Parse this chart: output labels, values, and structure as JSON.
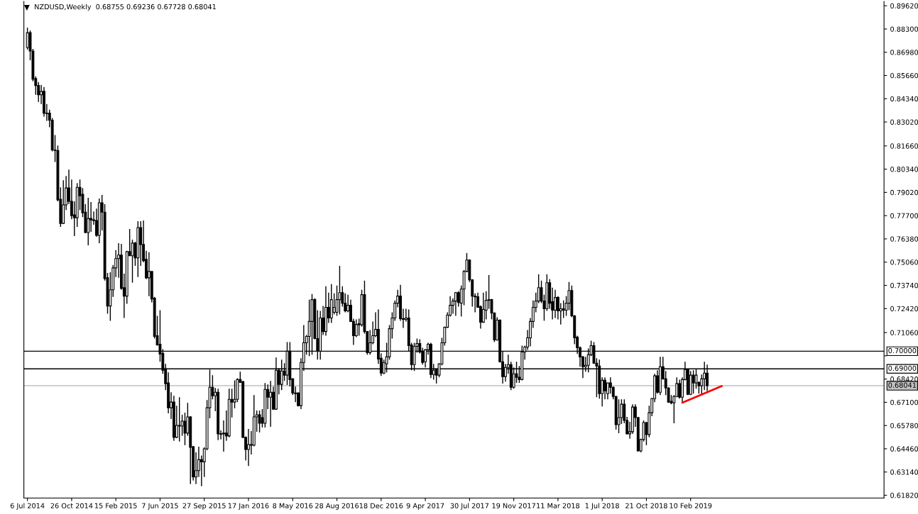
{
  "chart_data": {
    "type": "candlestick",
    "title": "NZDUSD,Weekly  0.68755 0.69236 0.67728 0.68041",
    "x": [
      "2014-07-06",
      "2014-07-13",
      "2014-07-20",
      "2014-07-27",
      "2014-08-03",
      "2014-08-10",
      "2014-08-17",
      "2014-08-24",
      "2014-08-31",
      "2014-09-07",
      "2014-09-14",
      "2014-09-21",
      "2014-09-28",
      "2014-10-05",
      "2014-10-12",
      "2014-10-19",
      "2014-10-26",
      "2014-11-02",
      "2014-11-09",
      "2014-11-16",
      "2014-11-23",
      "2014-11-30",
      "2014-12-07",
      "2014-12-14",
      "2014-12-21",
      "2014-12-28",
      "2015-01-04",
      "2015-01-11",
      "2015-01-18",
      "2015-01-25",
      "2015-02-01",
      "2015-02-08",
      "2015-02-15",
      "2015-02-22",
      "2015-03-01",
      "2015-03-08",
      "2015-03-15",
      "2015-03-22",
      "2015-03-29",
      "2015-04-05",
      "2015-04-12",
      "2015-04-19",
      "2015-04-26",
      "2015-05-03",
      "2015-05-10",
      "2015-05-17",
      "2015-05-24",
      "2015-05-31",
      "2015-06-07",
      "2015-06-14",
      "2015-06-21",
      "2015-06-28",
      "2015-07-05",
      "2015-07-12",
      "2015-07-19",
      "2015-07-26",
      "2015-08-02",
      "2015-08-09",
      "2015-08-16",
      "2015-08-23",
      "2015-08-30",
      "2015-09-06",
      "2015-09-13",
      "2015-09-20",
      "2015-09-27",
      "2015-10-04",
      "2015-10-11",
      "2015-10-18",
      "2015-10-25",
      "2015-11-01",
      "2015-11-08",
      "2015-11-15",
      "2015-11-22",
      "2015-11-29",
      "2015-12-06",
      "2015-12-13",
      "2015-12-20",
      "2015-12-27",
      "2016-01-03",
      "2016-01-10",
      "2016-01-17",
      "2016-01-24",
      "2016-01-31",
      "2016-02-07",
      "2016-02-14",
      "2016-02-21",
      "2016-02-28",
      "2016-03-06",
      "2016-03-13",
      "2016-03-20",
      "2016-03-27",
      "2016-04-03",
      "2016-04-10",
      "2016-04-17",
      "2016-04-24",
      "2016-05-01",
      "2016-05-08",
      "2016-05-15",
      "2016-05-22",
      "2016-05-29",
      "2016-06-05",
      "2016-06-12",
      "2016-06-19",
      "2016-06-26",
      "2016-07-03",
      "2016-07-10",
      "2016-07-17",
      "2016-07-24",
      "2016-07-31",
      "2016-08-07",
      "2016-08-14",
      "2016-08-21",
      "2016-08-28",
      "2016-09-04",
      "2016-09-11",
      "2016-09-18",
      "2016-09-25",
      "2016-10-02",
      "2016-10-09",
      "2016-10-16",
      "2016-10-23",
      "2016-10-30",
      "2016-11-06",
      "2016-11-13",
      "2016-11-20",
      "2016-11-27",
      "2016-12-04",
      "2016-12-11",
      "2016-12-18",
      "2016-12-25",
      "2017-01-01",
      "2017-01-08",
      "2017-01-15",
      "2017-01-22",
      "2017-01-29",
      "2017-02-05",
      "2017-02-12",
      "2017-02-19",
      "2017-02-26",
      "2017-03-05",
      "2017-03-12",
      "2017-03-19",
      "2017-03-26",
      "2017-04-02",
      "2017-04-09",
      "2017-04-16",
      "2017-04-23",
      "2017-04-30",
      "2017-05-07",
      "2017-05-14",
      "2017-05-21",
      "2017-05-28",
      "2017-06-04",
      "2017-06-11",
      "2017-06-18",
      "2017-06-25",
      "2017-07-02",
      "2017-07-09",
      "2017-07-16",
      "2017-07-23",
      "2017-07-30",
      "2017-08-06",
      "2017-08-13",
      "2017-08-20",
      "2017-08-27",
      "2017-09-03",
      "2017-09-10",
      "2017-09-17",
      "2017-09-24",
      "2017-10-01",
      "2017-10-08",
      "2017-10-15",
      "2017-10-22",
      "2017-10-29",
      "2017-11-05",
      "2017-11-12",
      "2017-11-19",
      "2017-11-26",
      "2017-12-03",
      "2017-12-10",
      "2017-12-17",
      "2017-12-24",
      "2017-12-31",
      "2018-01-07",
      "2018-01-14",
      "2018-01-21",
      "2018-01-28",
      "2018-02-04",
      "2018-02-11",
      "2018-02-18",
      "2018-02-25",
      "2018-03-04",
      "2018-03-11",
      "2018-03-18",
      "2018-03-25",
      "2018-04-01",
      "2018-04-08",
      "2018-04-15",
      "2018-04-22",
      "2018-04-29",
      "2018-05-06",
      "2018-05-13",
      "2018-05-20",
      "2018-05-27",
      "2018-06-03",
      "2018-06-10",
      "2018-06-17",
      "2018-06-24",
      "2018-07-01",
      "2018-07-08",
      "2018-07-15",
      "2018-07-22",
      "2018-07-29",
      "2018-08-05",
      "2018-08-12",
      "2018-08-19",
      "2018-08-26",
      "2018-09-02",
      "2018-09-09",
      "2018-09-16",
      "2018-09-23",
      "2018-09-30",
      "2018-10-07",
      "2018-10-14",
      "2018-10-21",
      "2018-10-28",
      "2018-11-04",
      "2018-11-11",
      "2018-11-18",
      "2018-11-25",
      "2018-12-02",
      "2018-12-09",
      "2018-12-16",
      "2018-12-23",
      "2018-12-30",
      "2019-01-06",
      "2019-01-13",
      "2019-01-20",
      "2019-01-27",
      "2019-02-03",
      "2019-02-10",
      "2019-02-17",
      "2019-02-24",
      "2019-03-03",
      "2019-03-10",
      "2019-03-17",
      "2019-03-24"
    ],
    "ohlc": [
      [
        0.8725,
        0.8838,
        0.8713,
        0.8809
      ],
      [
        0.8809,
        0.8822,
        0.8653,
        0.8705
      ],
      [
        0.8705,
        0.8717,
        0.8533,
        0.8545
      ],
      [
        0.8549,
        0.8561,
        0.8456,
        0.8509
      ],
      [
        0.8509,
        0.8529,
        0.8416,
        0.8456
      ],
      [
        0.8456,
        0.8513,
        0.8404,
        0.8476
      ],
      [
        0.8476,
        0.8501,
        0.8332,
        0.8352
      ],
      [
        0.8352,
        0.8404,
        0.8308,
        0.835
      ],
      [
        0.8352,
        0.8372,
        0.8272,
        0.8312
      ],
      [
        0.8312,
        0.8324,
        0.8135,
        0.8143
      ],
      [
        0.8143,
        0.8228,
        0.8075,
        0.814
      ],
      [
        0.814,
        0.8168,
        0.7851,
        0.7859
      ],
      [
        0.7863,
        0.7931,
        0.7706,
        0.7726
      ],
      [
        0.7726,
        0.7971,
        0.7722,
        0.7831
      ],
      [
        0.7831,
        0.7995,
        0.7802,
        0.7927
      ],
      [
        0.7927,
        0.8031,
        0.7835,
        0.7851
      ],
      [
        0.7851,
        0.7975,
        0.775,
        0.777
      ],
      [
        0.7774,
        0.7851,
        0.7654,
        0.7758
      ],
      [
        0.7758,
        0.7955,
        0.7706,
        0.7931
      ],
      [
        0.7931,
        0.7975,
        0.7802,
        0.7883
      ],
      [
        0.7891,
        0.7927,
        0.7762,
        0.7786
      ],
      [
        0.779,
        0.7835,
        0.767,
        0.7674
      ],
      [
        0.7674,
        0.7871,
        0.7602,
        0.7754
      ],
      [
        0.7754,
        0.7847,
        0.7678,
        0.7746
      ],
      [
        0.7746,
        0.7794,
        0.7718,
        0.7742
      ],
      [
        0.7742,
        0.781,
        0.765,
        0.7658
      ],
      [
        0.7658,
        0.7867,
        0.7614,
        0.7843
      ],
      [
        0.7843,
        0.7887,
        0.7686,
        0.779
      ],
      [
        0.779,
        0.7835,
        0.7401,
        0.7413
      ],
      [
        0.7417,
        0.7445,
        0.7213,
        0.7257
      ],
      [
        0.7257,
        0.7449,
        0.7173,
        0.7349
      ],
      [
        0.7349,
        0.749,
        0.7309,
        0.7473
      ],
      [
        0.7473,
        0.7574,
        0.7421,
        0.7526
      ],
      [
        0.7526,
        0.7614,
        0.7417,
        0.7546
      ],
      [
        0.7546,
        0.761,
        0.7349,
        0.7357
      ],
      [
        0.7361,
        0.7441,
        0.7189,
        0.7313
      ],
      [
        0.7313,
        0.757,
        0.7269,
        0.7566
      ],
      [
        0.7566,
        0.7694,
        0.7542,
        0.7542
      ],
      [
        0.7542,
        0.7634,
        0.7389,
        0.7614
      ],
      [
        0.7614,
        0.7622,
        0.7485,
        0.753
      ],
      [
        0.753,
        0.7738,
        0.7421,
        0.7702
      ],
      [
        0.7702,
        0.7738,
        0.7485,
        0.7606
      ],
      [
        0.7606,
        0.7742,
        0.7505,
        0.7514
      ],
      [
        0.7522,
        0.757,
        0.7409,
        0.7417
      ],
      [
        0.7417,
        0.7562,
        0.7313,
        0.7453
      ],
      [
        0.7453,
        0.7453,
        0.7277,
        0.7297
      ],
      [
        0.7301,
        0.7309,
        0.7072,
        0.7084
      ],
      [
        0.7088,
        0.7201,
        0.7032,
        0.7036
      ],
      [
        0.704,
        0.7233,
        0.694,
        0.6984
      ],
      [
        0.6988,
        0.7012,
        0.6872,
        0.6892
      ],
      [
        0.69,
        0.6928,
        0.6779,
        0.6816
      ],
      [
        0.682,
        0.688,
        0.6647,
        0.6679
      ],
      [
        0.6679,
        0.6767,
        0.6615,
        0.6711
      ],
      [
        0.6711,
        0.6747,
        0.6491,
        0.6511
      ],
      [
        0.6511,
        0.6691,
        0.6507,
        0.6579
      ],
      [
        0.6575,
        0.6739,
        0.6487,
        0.6579
      ],
      [
        0.6575,
        0.6639,
        0.6519,
        0.6603
      ],
      [
        0.6603,
        0.6651,
        0.6466,
        0.6535
      ],
      [
        0.6535,
        0.6707,
        0.6519,
        0.6627
      ],
      [
        0.6627,
        0.6631,
        0.6246,
        0.6454
      ],
      [
        0.6458,
        0.6462,
        0.6266,
        0.6286
      ],
      [
        0.6286,
        0.6426,
        0.6246,
        0.6322
      ],
      [
        0.6322,
        0.6458,
        0.6286,
        0.6384
      ],
      [
        0.6384,
        0.6408,
        0.6234,
        0.6372
      ],
      [
        0.6372,
        0.6454,
        0.6286,
        0.6446
      ],
      [
        0.6446,
        0.6723,
        0.6438,
        0.6679
      ],
      [
        0.6679,
        0.6896,
        0.6619,
        0.6795
      ],
      [
        0.6795,
        0.6864,
        0.6727,
        0.6747
      ],
      [
        0.6747,
        0.6791,
        0.6659,
        0.6767
      ],
      [
        0.6767,
        0.6787,
        0.6495,
        0.6531
      ],
      [
        0.6531,
        0.6551,
        0.6499,
        0.6528
      ],
      [
        0.6531,
        0.6607,
        0.643,
        0.6535
      ],
      [
        0.6535,
        0.6663,
        0.6491,
        0.6519
      ],
      [
        0.6519,
        0.6787,
        0.6511,
        0.6727
      ],
      [
        0.6727,
        0.6787,
        0.6623,
        0.6711
      ],
      [
        0.6711,
        0.6835,
        0.6675,
        0.6727
      ],
      [
        0.6727,
        0.6847,
        0.6711,
        0.6839
      ],
      [
        0.6839,
        0.6884,
        0.6823,
        0.6823
      ],
      [
        0.6827,
        0.6831,
        0.6507,
        0.6511
      ],
      [
        0.6511,
        0.6515,
        0.638,
        0.6442
      ],
      [
        0.6442,
        0.6559,
        0.6348,
        0.647
      ],
      [
        0.647,
        0.6547,
        0.6414,
        0.6466
      ],
      [
        0.6466,
        0.6751,
        0.646,
        0.6627
      ],
      [
        0.6627,
        0.6663,
        0.6543,
        0.6639
      ],
      [
        0.6639,
        0.6663,
        0.6539,
        0.6591
      ],
      [
        0.6623,
        0.6671,
        0.6567,
        0.6591
      ],
      [
        0.6591,
        0.6819,
        0.6567,
        0.6783
      ],
      [
        0.6783,
        0.6811,
        0.6671,
        0.6739
      ],
      [
        0.6739,
        0.6831,
        0.6571,
        0.6767
      ],
      [
        0.6767,
        0.6799,
        0.6667,
        0.6671
      ],
      [
        0.6671,
        0.6964,
        0.6667,
        0.6892
      ],
      [
        0.6892,
        0.6904,
        0.6755,
        0.6812
      ],
      [
        0.6812,
        0.6952,
        0.6779,
        0.6888
      ],
      [
        0.6888,
        0.6932,
        0.6831,
        0.6864
      ],
      [
        0.6864,
        0.7052,
        0.6808,
        0.7
      ],
      [
        0.7,
        0.7052,
        0.68,
        0.6839
      ],
      [
        0.6843,
        0.6847,
        0.6751,
        0.6763
      ],
      [
        0.6763,
        0.6799,
        0.6711,
        0.6759
      ],
      [
        0.6763,
        0.6767,
        0.6687,
        0.6691
      ],
      [
        0.6691,
        0.696,
        0.6671,
        0.6936
      ],
      [
        0.6936,
        0.7149,
        0.6888,
        0.7048
      ],
      [
        0.7048,
        0.7092,
        0.698,
        0.7084
      ],
      [
        0.7084,
        0.7293,
        0.6972,
        0.7169
      ],
      [
        0.7169,
        0.7325,
        0.698,
        0.7293
      ],
      [
        0.7293,
        0.7301,
        0.7068,
        0.7072
      ],
      [
        0.7072,
        0.7233,
        0.6952,
        0.7
      ],
      [
        0.7,
        0.7229,
        0.6952,
        0.7189
      ],
      [
        0.7189,
        0.7257,
        0.7092,
        0.7112
      ],
      [
        0.7112,
        0.7369,
        0.7088,
        0.7249
      ],
      [
        0.7249,
        0.7333,
        0.7161,
        0.7189
      ],
      [
        0.7189,
        0.7381,
        0.7161,
        0.7293
      ],
      [
        0.7221,
        0.7329,
        0.7209,
        0.7249
      ],
      [
        0.7221,
        0.7373,
        0.7201,
        0.7293
      ],
      [
        0.7293,
        0.7485,
        0.7209,
        0.7333
      ],
      [
        0.7333,
        0.7369,
        0.7253,
        0.7273
      ],
      [
        0.7273,
        0.7329,
        0.7221,
        0.7229
      ],
      [
        0.7229,
        0.7321,
        0.7221,
        0.7261
      ],
      [
        0.7261,
        0.7293,
        0.7169,
        0.7169
      ],
      [
        0.7169,
        0.7185,
        0.7036,
        0.7088
      ],
      [
        0.7088,
        0.7181,
        0.708,
        0.7152
      ],
      [
        0.7156,
        0.7185,
        0.7088,
        0.715
      ],
      [
        0.715,
        0.7349,
        0.714,
        0.7321
      ],
      [
        0.7321,
        0.7401,
        0.71,
        0.7112
      ],
      [
        0.7112,
        0.7112,
        0.698,
        0.6992
      ],
      [
        0.6992,
        0.712,
        0.698,
        0.7048
      ],
      [
        0.7048,
        0.7169,
        0.704,
        0.7088
      ],
      [
        0.7088,
        0.7221,
        0.708,
        0.7124
      ],
      [
        0.7124,
        0.7237,
        0.6928,
        0.6956
      ],
      [
        0.696,
        0.6988,
        0.686,
        0.6876
      ],
      [
        0.6876,
        0.6952,
        0.687,
        0.6936
      ],
      [
        0.6928,
        0.7048,
        0.688,
        0.6968
      ],
      [
        0.6968,
        0.7149,
        0.6952,
        0.7128
      ],
      [
        0.7128,
        0.7221,
        0.7072,
        0.7189
      ],
      [
        0.7189,
        0.7289,
        0.7173,
        0.7273
      ],
      [
        0.7273,
        0.7349,
        0.7249,
        0.7313
      ],
      [
        0.7313,
        0.7377,
        0.7173,
        0.7185
      ],
      [
        0.7185,
        0.7241,
        0.7132,
        0.7181
      ],
      [
        0.7181,
        0.7241,
        0.7169,
        0.7189
      ],
      [
        0.7189,
        0.7237,
        0.7,
        0.7032
      ],
      [
        0.7036,
        0.7048,
        0.6892,
        0.6924
      ],
      [
        0.6924,
        0.7048,
        0.6888,
        0.7028
      ],
      [
        0.7028,
        0.7072,
        0.6992,
        0.7044
      ],
      [
        0.7044,
        0.7068,
        0.6988,
        0.6996
      ],
      [
        0.7,
        0.702,
        0.6924,
        0.6936
      ],
      [
        0.694,
        0.7012,
        0.6908,
        0.7008
      ],
      [
        0.7008,
        0.7048,
        0.698,
        0.704
      ],
      [
        0.704,
        0.7048,
        0.6848,
        0.6868
      ],
      [
        0.6868,
        0.6928,
        0.6839,
        0.6892
      ],
      [
        0.69,
        0.69,
        0.6816,
        0.6864
      ],
      [
        0.6864,
        0.6932,
        0.6852,
        0.6928
      ],
      [
        0.6928,
        0.7076,
        0.692,
        0.7048
      ],
      [
        0.7048,
        0.714,
        0.7032,
        0.7136
      ],
      [
        0.7136,
        0.7221,
        0.7132,
        0.7205
      ],
      [
        0.7205,
        0.7313,
        0.7197,
        0.7261
      ],
      [
        0.7261,
        0.7301,
        0.7213,
        0.7285
      ],
      [
        0.7285,
        0.7337,
        0.7201,
        0.7333
      ],
      [
        0.7333,
        0.7341,
        0.7253,
        0.7277
      ],
      [
        0.7273,
        0.7373,
        0.7197,
        0.7353
      ],
      [
        0.7353,
        0.7461,
        0.7261,
        0.7453
      ],
      [
        0.7453,
        0.7558,
        0.7449,
        0.7518
      ],
      [
        0.7518,
        0.7522,
        0.7393,
        0.7405
      ],
      [
        0.7405,
        0.7409,
        0.7253,
        0.7313
      ],
      [
        0.7313,
        0.7329,
        0.7221,
        0.7309
      ],
      [
        0.7309,
        0.7333,
        0.7249,
        0.7249
      ],
      [
        0.7253,
        0.726,
        0.7128,
        0.7165
      ],
      [
        0.7165,
        0.7333,
        0.7161,
        0.7237
      ],
      [
        0.7233,
        0.7341,
        0.7181,
        0.7289
      ],
      [
        0.7289,
        0.7433,
        0.7241,
        0.7293
      ],
      [
        0.7293,
        0.7297,
        0.7181,
        0.7217
      ],
      [
        0.7217,
        0.7221,
        0.7052,
        0.7064
      ],
      [
        0.7064,
        0.7193,
        0.706,
        0.7177
      ],
      [
        0.7177,
        0.7181,
        0.6936,
        0.694
      ],
      [
        0.694,
        0.7,
        0.6816,
        0.6856
      ],
      [
        0.6856,
        0.6928,
        0.6827,
        0.6908
      ],
      [
        0.6908,
        0.698,
        0.6872,
        0.6924
      ],
      [
        0.6924,
        0.694,
        0.6779,
        0.6795
      ],
      [
        0.6795,
        0.6908,
        0.6787,
        0.6872
      ],
      [
        0.6872,
        0.694,
        0.682,
        0.6852
      ],
      [
        0.6852,
        0.6916,
        0.682,
        0.6839
      ],
      [
        0.6839,
        0.7032,
        0.6835,
        0.6996
      ],
      [
        0.6996,
        0.7032,
        0.6952,
        0.7024
      ],
      [
        0.7024,
        0.712,
        0.7008,
        0.7076
      ],
      [
        0.7076,
        0.7189,
        0.7028,
        0.7169
      ],
      [
        0.7169,
        0.7289,
        0.7132,
        0.7249
      ],
      [
        0.7249,
        0.7333,
        0.7221,
        0.7285
      ],
      [
        0.7285,
        0.7437,
        0.7273,
        0.7361
      ],
      [
        0.7361,
        0.7401,
        0.7273,
        0.7285
      ],
      [
        0.7285,
        0.7321,
        0.7173,
        0.7241
      ],
      [
        0.7241,
        0.7437,
        0.7229,
        0.7389
      ],
      [
        0.7389,
        0.7409,
        0.7241,
        0.7273
      ],
      [
        0.7281,
        0.7361,
        0.7181,
        0.7233
      ],
      [
        0.7233,
        0.7349,
        0.7189,
        0.7305
      ],
      [
        0.7305,
        0.7313,
        0.7181,
        0.7229
      ],
      [
        0.7229,
        0.7273,
        0.7152,
        0.7241
      ],
      [
        0.7241,
        0.7289,
        0.7189,
        0.7233
      ],
      [
        0.7233,
        0.7313,
        0.7201,
        0.7273
      ],
      [
        0.7273,
        0.7393,
        0.7233,
        0.7345
      ],
      [
        0.7345,
        0.7373,
        0.7193,
        0.7201
      ],
      [
        0.7201,
        0.7205,
        0.704,
        0.7076
      ],
      [
        0.708,
        0.7088,
        0.6984,
        0.702
      ],
      [
        0.702,
        0.7028,
        0.6912,
        0.6968
      ],
      [
        0.6968,
        0.6972,
        0.6848,
        0.6912
      ],
      [
        0.6912,
        0.6968,
        0.6884,
        0.692
      ],
      [
        0.692,
        0.7016,
        0.688,
        0.698
      ],
      [
        0.698,
        0.706,
        0.6972,
        0.7032
      ],
      [
        0.7032,
        0.7052,
        0.6928,
        0.6932
      ],
      [
        0.6932,
        0.696,
        0.6739,
        0.6916
      ],
      [
        0.6916,
        0.6952,
        0.6731,
        0.6759
      ],
      [
        0.6759,
        0.6852,
        0.6687,
        0.6835
      ],
      [
        0.6835,
        0.6852,
        0.6727,
        0.6775
      ],
      [
        0.6759,
        0.682,
        0.6727,
        0.682
      ],
      [
        0.682,
        0.6852,
        0.6759,
        0.6795
      ],
      [
        0.6795,
        0.6799,
        0.6727,
        0.6743
      ],
      [
        0.6743,
        0.6747,
        0.6555,
        0.6583
      ],
      [
        0.6583,
        0.6727,
        0.6535,
        0.6623
      ],
      [
        0.6623,
        0.6727,
        0.6587,
        0.6699
      ],
      [
        0.6699,
        0.6727,
        0.6591,
        0.6607
      ],
      [
        0.6607,
        0.6627,
        0.6527,
        0.6531
      ],
      [
        0.6531,
        0.6599,
        0.6503,
        0.6543
      ],
      [
        0.6543,
        0.6699,
        0.6531,
        0.6683
      ],
      [
        0.6683,
        0.6699,
        0.6571,
        0.6623
      ],
      [
        0.6623,
        0.6627,
        0.643,
        0.6434
      ],
      [
        0.6434,
        0.6503,
        0.6426,
        0.6499
      ],
      [
        0.6499,
        0.6607,
        0.6487,
        0.6595
      ],
      [
        0.6595,
        0.6599,
        0.6466,
        0.6527
      ],
      [
        0.6527,
        0.6691,
        0.6511,
        0.6651
      ],
      [
        0.6651,
        0.6735,
        0.6631,
        0.6731
      ],
      [
        0.6731,
        0.6872,
        0.6711,
        0.686
      ],
      [
        0.686,
        0.6892,
        0.6759,
        0.6767
      ],
      [
        0.6767,
        0.6968,
        0.6751,
        0.6912
      ],
      [
        0.6912,
        0.6968,
        0.6839,
        0.6843
      ],
      [
        0.6843,
        0.6888,
        0.6751,
        0.6791
      ],
      [
        0.6791,
        0.6795,
        0.6707,
        0.6711
      ],
      [
        0.6715,
        0.6751,
        0.6699,
        0.6707
      ],
      [
        0.6707,
        0.6751,
        0.6591,
        0.6743
      ],
      [
        0.6743,
        0.6852,
        0.6739,
        0.6816
      ],
      [
        0.6816,
        0.6839,
        0.6731,
        0.6739
      ],
      [
        0.6739,
        0.6852,
        0.6711,
        0.6839
      ],
      [
        0.6839,
        0.694,
        0.6835,
        0.6896
      ],
      [
        0.6896,
        0.69,
        0.6751,
        0.6755
      ],
      [
        0.6755,
        0.6888,
        0.6751,
        0.6864
      ],
      [
        0.6864,
        0.6892,
        0.6759,
        0.682
      ],
      [
        0.682,
        0.69,
        0.6787,
        0.6864
      ],
      [
        0.6823,
        0.6827,
        0.6759,
        0.6804
      ],
      [
        0.6804,
        0.6868,
        0.6751,
        0.6843
      ],
      [
        0.6843,
        0.694,
        0.6779,
        0.6876
      ],
      [
        0.68755,
        0.69236,
        0.67728,
        0.68041
      ]
    ],
    "series": [
      {
        "type": "line",
        "x": [
          "2019-01-20",
          "2019-04-30"
        ],
        "values": [
          0.6708,
          0.6802
        ],
        "color": "#ff0000"
      }
    ],
    "xlim": [
      "2014-06-27",
      "2020-06-14"
    ],
    "ylim": [
      0.6166,
      0.8986
    ],
    "xticks": [
      {
        "value": "2014-07-06",
        "label": "6 Jul 2014"
      },
      {
        "value": "2014-10-26",
        "label": "26 Oct 2014"
      },
      {
        "value": "2015-02-15",
        "label": "15 Feb 2015"
      },
      {
        "value": "2015-06-07",
        "label": "7 Jun 2015"
      },
      {
        "value": "2015-09-27",
        "label": "27 Sep 2015"
      },
      {
        "value": "2016-01-17",
        "label": "17 Jan 2016"
      },
      {
        "value": "2016-05-08",
        "label": "8 May 2016"
      },
      {
        "value": "2016-08-28",
        "label": "28 Aug 2016"
      },
      {
        "value": "2016-12-18",
        "label": "18 Dec 2016"
      },
      {
        "value": "2017-04-09",
        "label": "9 Apr 2017"
      },
      {
        "value": "2017-07-30",
        "label": "30 Jul 2017"
      },
      {
        "value": "2017-11-19",
        "label": "19 Nov 2017"
      },
      {
        "value": "2018-03-11",
        "label": "11 Mar 2018"
      },
      {
        "value": "2018-07-01",
        "label": "1 Jul 2018"
      },
      {
        "value": "2018-10-21",
        "label": "21 Oct 2018"
      },
      {
        "value": "2019-02-10",
        "label": "10 Feb 2019"
      }
    ],
    "yticks": [
      {
        "value": 0.8962,
        "label": "0.89620"
      },
      {
        "value": 0.883,
        "label": "0.88300"
      },
      {
        "value": 0.8698,
        "label": "0.86980"
      },
      {
        "value": 0.8566,
        "label": "0.85660"
      },
      {
        "value": 0.8434,
        "label": "0.84340"
      },
      {
        "value": 0.8302,
        "label": "0.83020"
      },
      {
        "value": 0.8166,
        "label": "0.81660"
      },
      {
        "value": 0.8034,
        "label": "0.80340"
      },
      {
        "value": 0.7902,
        "label": "0.79020"
      },
      {
        "value": 0.777,
        "label": "0.77700"
      },
      {
        "value": 0.7638,
        "label": "0.76380"
      },
      {
        "value": 0.7506,
        "label": "0.75060"
      },
      {
        "value": 0.7374,
        "label": "0.73740"
      },
      {
        "value": 0.7242,
        "label": "0.72420"
      },
      {
        "value": 0.7106,
        "label": "0.71060"
      },
      {
        "value": 0.6974,
        "label": null
      },
      {
        "value": 0.6842,
        "label": "0.68420"
      },
      {
        "value": 0.671,
        "label": "0.67100"
      },
      {
        "value": 0.6578,
        "label": "0.65780"
      },
      {
        "value": 0.6446,
        "label": "0.64460"
      },
      {
        "value": 0.6314,
        "label": "0.63140"
      },
      {
        "value": 0.6182,
        "label": "0.61820"
      }
    ],
    "ref_lines": [
      {
        "axis": "y",
        "value": 0.7,
        "label": "0.70000",
        "color": "#000000"
      },
      {
        "axis": "y",
        "value": 0.69,
        "label": "0.69000",
        "color": "#000000"
      },
      {
        "axis": "y",
        "value": 0.68041,
        "label": "0.68041",
        "color": "#c0c0c0"
      }
    ],
    "grid": false,
    "legend": false
  }
}
